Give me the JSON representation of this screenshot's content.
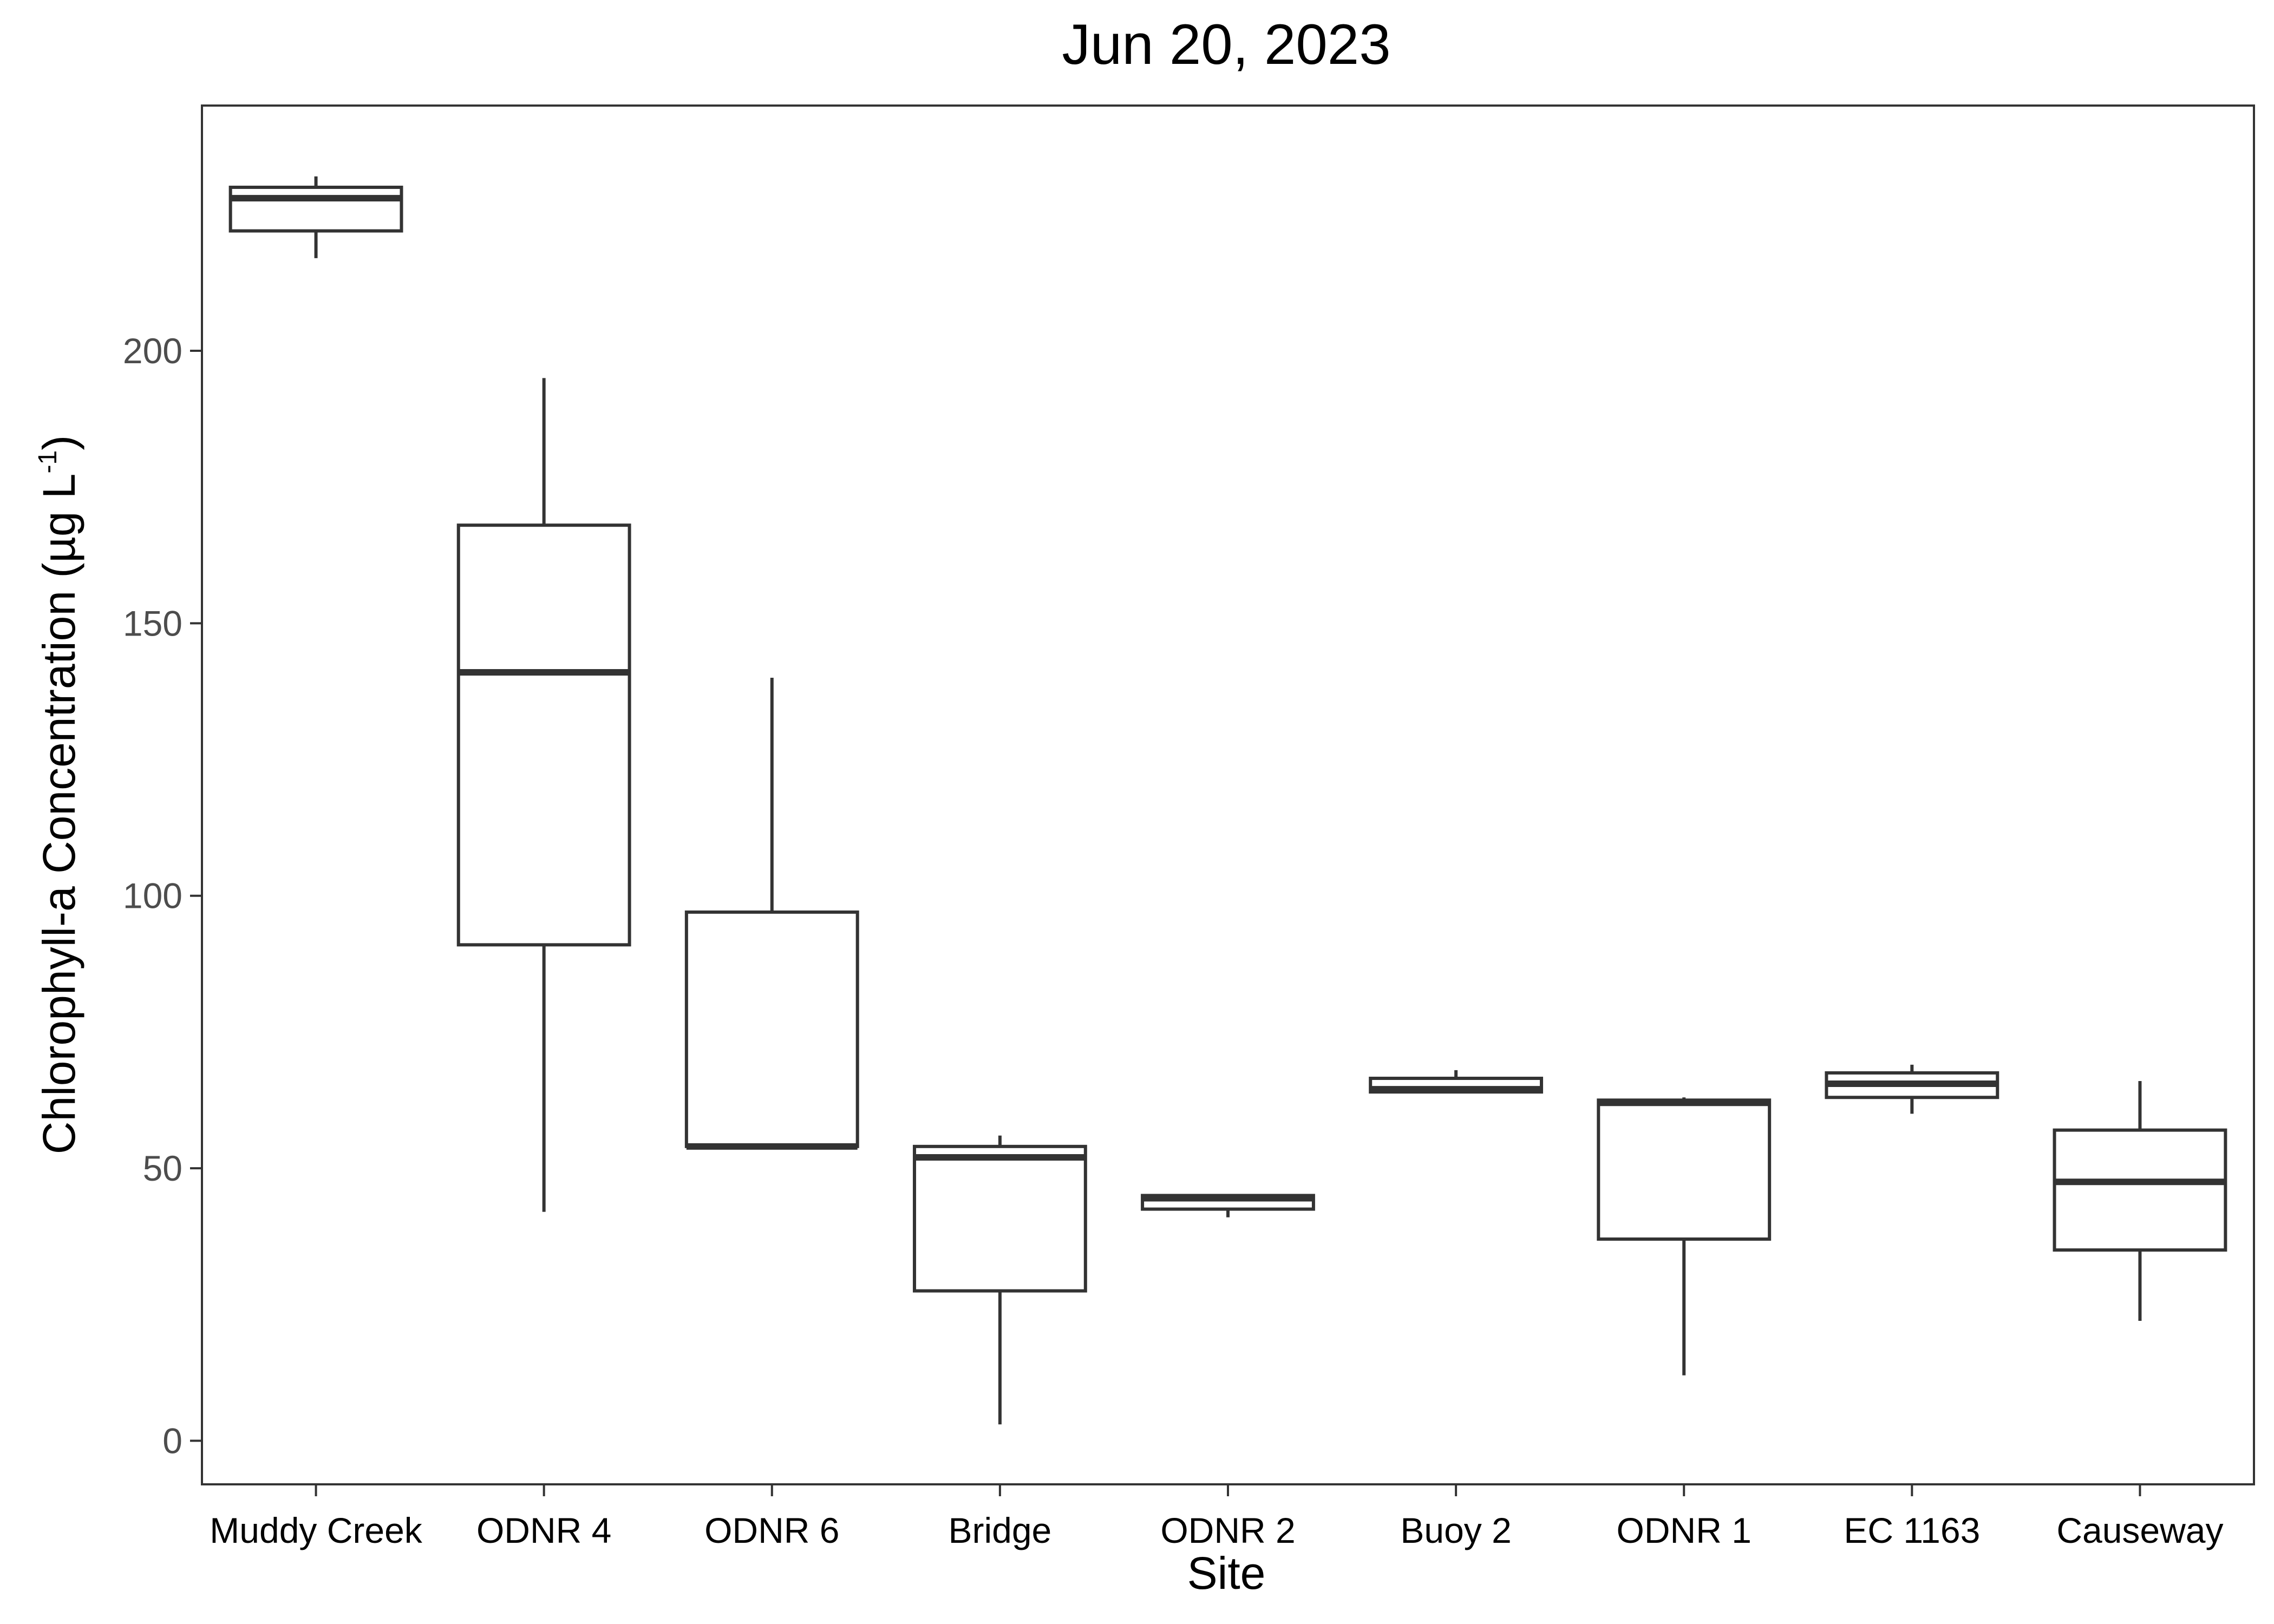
{
  "chart_data": {
    "type": "box",
    "title": "Jun 20, 2023",
    "xlabel": "Site",
    "ylabel_main": "Chlorophyll-a Concentration (µg L",
    "ylabel_sup": "-1",
    "ylabel_close": ")",
    "ylim": [
      -8,
      245
    ],
    "yticks": [
      0,
      50,
      100,
      150,
      200
    ],
    "ytick_labels": [
      "0",
      "50",
      "100",
      "150",
      "200"
    ],
    "grid": false,
    "categories": [
      "Muddy Creek",
      "ODNR 4",
      "ODNR 6",
      "Bridge",
      "ODNR 2",
      "Buoy 2",
      "ODNR 1",
      "EC 1163",
      "Causeway"
    ],
    "boxes": [
      {
        "min": 217,
        "q1": 222,
        "median": 228,
        "q3": 230,
        "max": 232
      },
      {
        "min": 42,
        "q1": 91,
        "median": 141,
        "q3": 168,
        "max": 195
      },
      {
        "min": 54,
        "q1": 54,
        "median": 54,
        "q3": 97,
        "max": 140
      },
      {
        "min": 3,
        "q1": 27.5,
        "median": 52,
        "q3": 54,
        "max": 56
      },
      {
        "min": 41,
        "q1": 42.5,
        "median": 44.5,
        "q3": 45,
        "max": 45
      },
      {
        "min": 64,
        "q1": 64,
        "median": 64.5,
        "q3": 66.5,
        "max": 68
      },
      {
        "min": 12,
        "q1": 37,
        "median": 62,
        "q3": 62.5,
        "max": 63
      },
      {
        "min": 60,
        "q1": 63,
        "median": 65.5,
        "q3": 67.5,
        "max": 69
      },
      {
        "min": 22,
        "q1": 35,
        "median": 47.5,
        "q3": 57,
        "max": 66
      }
    ],
    "colors": {
      "box_stroke": "#333333",
      "box_fill": "#ffffff",
      "panel_border": "#333333",
      "tick_label": "#4d4d4d"
    }
  }
}
